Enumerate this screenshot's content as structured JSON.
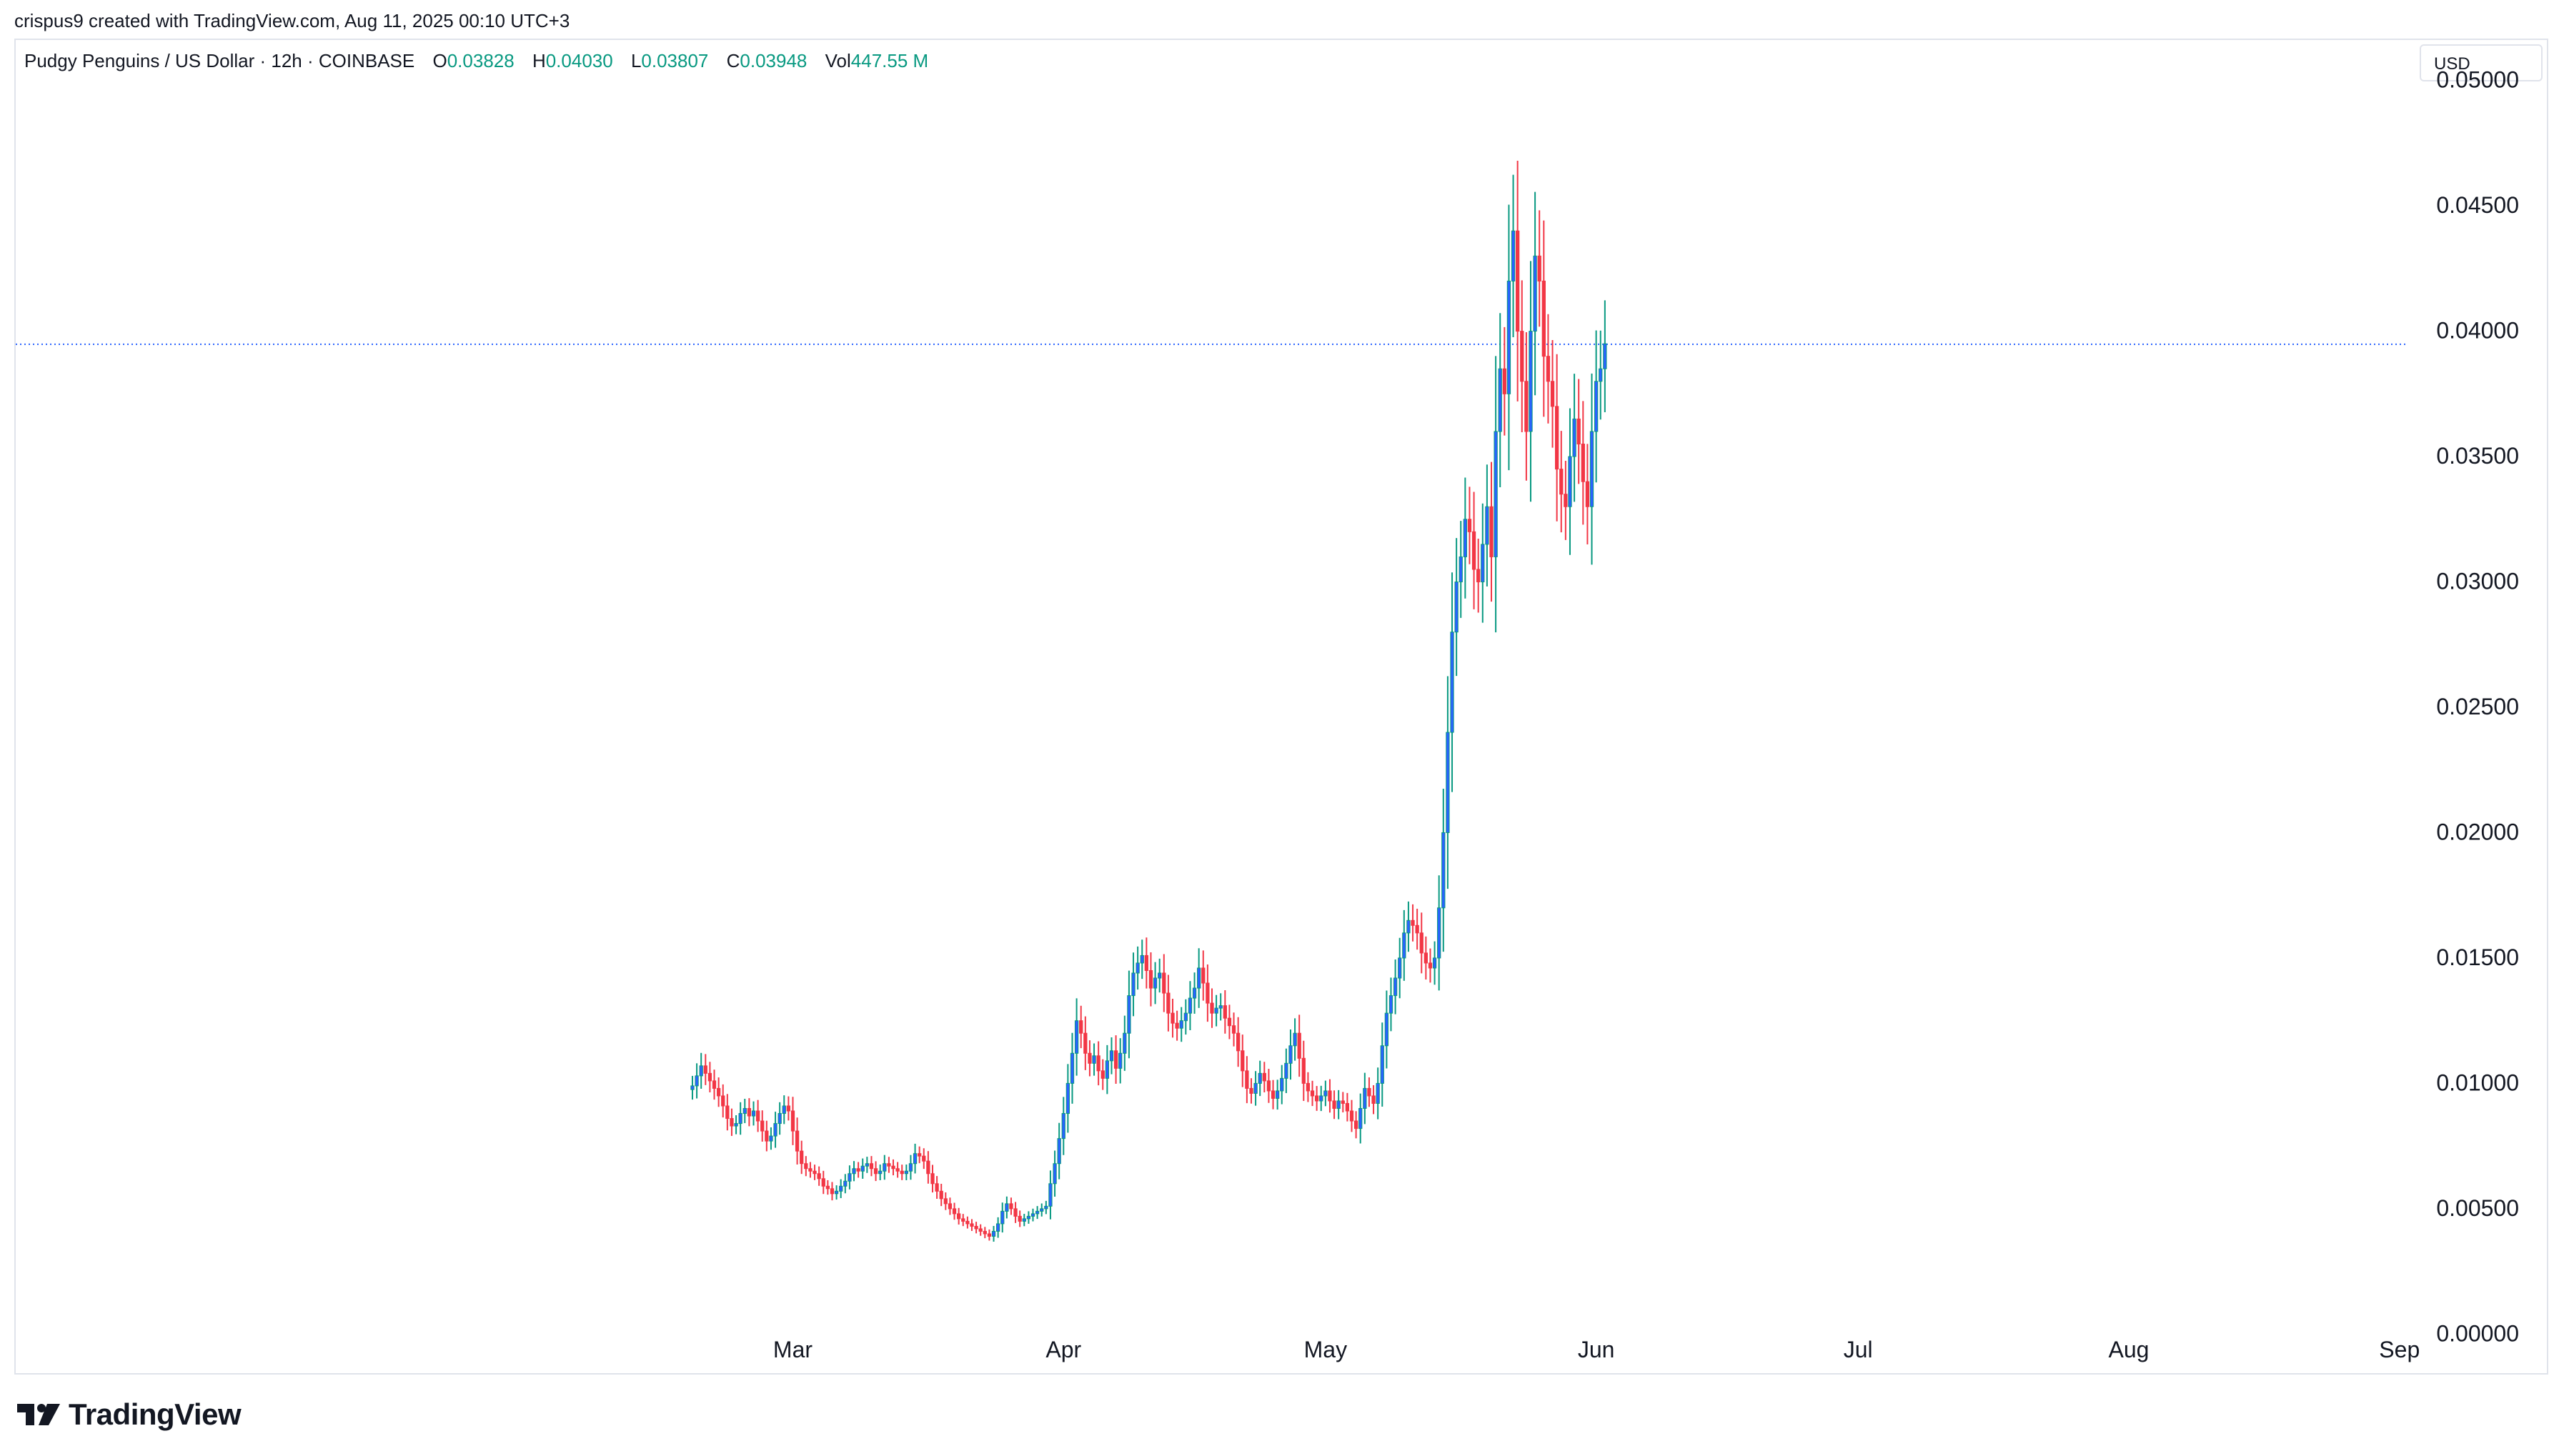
{
  "header": {
    "credit": "crispus9 created with TradingView.com, Aug 11, 2025 00:10 UTC+3"
  },
  "legend": {
    "symbol": "Pudgy Penguins / US Dollar · 12h · COINBASE",
    "open_label": "O",
    "open": "0.03828",
    "high_label": "H",
    "high": "0.04030",
    "low_label": "L",
    "low": "0.03807",
    "close_label": "C",
    "close": "0.03948",
    "vol_label": "Vol",
    "vol": "447.55 M"
  },
  "currency_button": "USD",
  "footer": {
    "brand": "TradingView"
  },
  "colors": {
    "up": "#089981",
    "down": "#f23645",
    "upDark": "#2962ff",
    "grid": "#e0e3eb",
    "lastline": "#2962ff"
  },
  "chart_data": {
    "type": "candlestick",
    "interval": "12h",
    "y_ticks": [
      "0.00000",
      "0.00500",
      "0.01000",
      "0.01500",
      "0.02000",
      "0.02500",
      "0.03000",
      "0.03500",
      "0.04000",
      "0.04500",
      "0.05000"
    ],
    "ylim": [
      0,
      0.05
    ],
    "x_ticks": [
      "Mar",
      "Apr",
      "May",
      "Jun",
      "Jul",
      "Aug",
      "Sep"
    ],
    "x_tick_days": [
      28,
      59,
      89,
      120,
      150,
      181,
      212
    ],
    "xlim_days": [
      -61,
      213
    ],
    "start_day": 16.5,
    "last_price": 0.03948,
    "closes": [
      0.0099,
      0.0103,
      0.0107,
      0.0104,
      0.0101,
      0.0098,
      0.0095,
      0.0091,
      0.0086,
      0.0083,
      0.0084,
      0.0088,
      0.009,
      0.0087,
      0.0089,
      0.0085,
      0.0081,
      0.0077,
      0.0079,
      0.0084,
      0.0088,
      0.0091,
      0.0089,
      0.0081,
      0.0073,
      0.0068,
      0.0066,
      0.0065,
      0.0064,
      0.0062,
      0.0059,
      0.0058,
      0.0056,
      0.0057,
      0.0059,
      0.0061,
      0.0064,
      0.0066,
      0.0065,
      0.0067,
      0.0068,
      0.0066,
      0.0064,
      0.0065,
      0.0068,
      0.0067,
      0.0066,
      0.0065,
      0.0064,
      0.0065,
      0.0068,
      0.0072,
      0.0071,
      0.0069,
      0.0064,
      0.006,
      0.0057,
      0.0054,
      0.0052,
      0.005,
      0.0048,
      0.0046,
      0.0045,
      0.0044,
      0.0043,
      0.0042,
      0.0041,
      0.004,
      0.0039,
      0.0041,
      0.0044,
      0.0049,
      0.0052,
      0.005,
      0.0047,
      0.0045,
      0.0046,
      0.0047,
      0.0048,
      0.0049,
      0.005,
      0.0051,
      0.006,
      0.0068,
      0.0078,
      0.0088,
      0.01,
      0.0112,
      0.0125,
      0.012,
      0.0112,
      0.0108,
      0.0111,
      0.0105,
      0.0102,
      0.0109,
      0.0113,
      0.0106,
      0.0112,
      0.012,
      0.0135,
      0.0144,
      0.0148,
      0.0151,
      0.0145,
      0.0138,
      0.0142,
      0.0144,
      0.0136,
      0.0128,
      0.0124,
      0.0122,
      0.0125,
      0.0128,
      0.0134,
      0.0138,
      0.0146,
      0.014,
      0.0132,
      0.0128,
      0.013,
      0.0131,
      0.0126,
      0.0123,
      0.012,
      0.0113,
      0.0105,
      0.0098,
      0.0096,
      0.01,
      0.0104,
      0.0101,
      0.0097,
      0.0094,
      0.0097,
      0.0102,
      0.0108,
      0.0115,
      0.012,
      0.011,
      0.01,
      0.0097,
      0.0095,
      0.0093,
      0.0095,
      0.0097,
      0.0093,
      0.009,
      0.0093,
      0.0092,
      0.0089,
      0.0085,
      0.0082,
      0.009,
      0.0098,
      0.0095,
      0.0092,
      0.01,
      0.0115,
      0.0128,
      0.0135,
      0.0142,
      0.015,
      0.016,
      0.0165,
      0.0163,
      0.016,
      0.0152,
      0.0148,
      0.0146,
      0.015,
      0.017,
      0.02,
      0.024,
      0.028,
      0.03,
      0.031,
      0.0325,
      0.032,
      0.0305,
      0.03,
      0.0315,
      0.033,
      0.031,
      0.036,
      0.0385,
      0.0375,
      0.042,
      0.044,
      0.04,
      0.038,
      0.036,
      0.04,
      0.043,
      0.042,
      0.039,
      0.038,
      0.037,
      0.0345,
      0.0335,
      0.033,
      0.035,
      0.0365,
      0.0355,
      0.034,
      0.033,
      0.036,
      0.038,
      0.0385,
      0.0395
    ]
  }
}
